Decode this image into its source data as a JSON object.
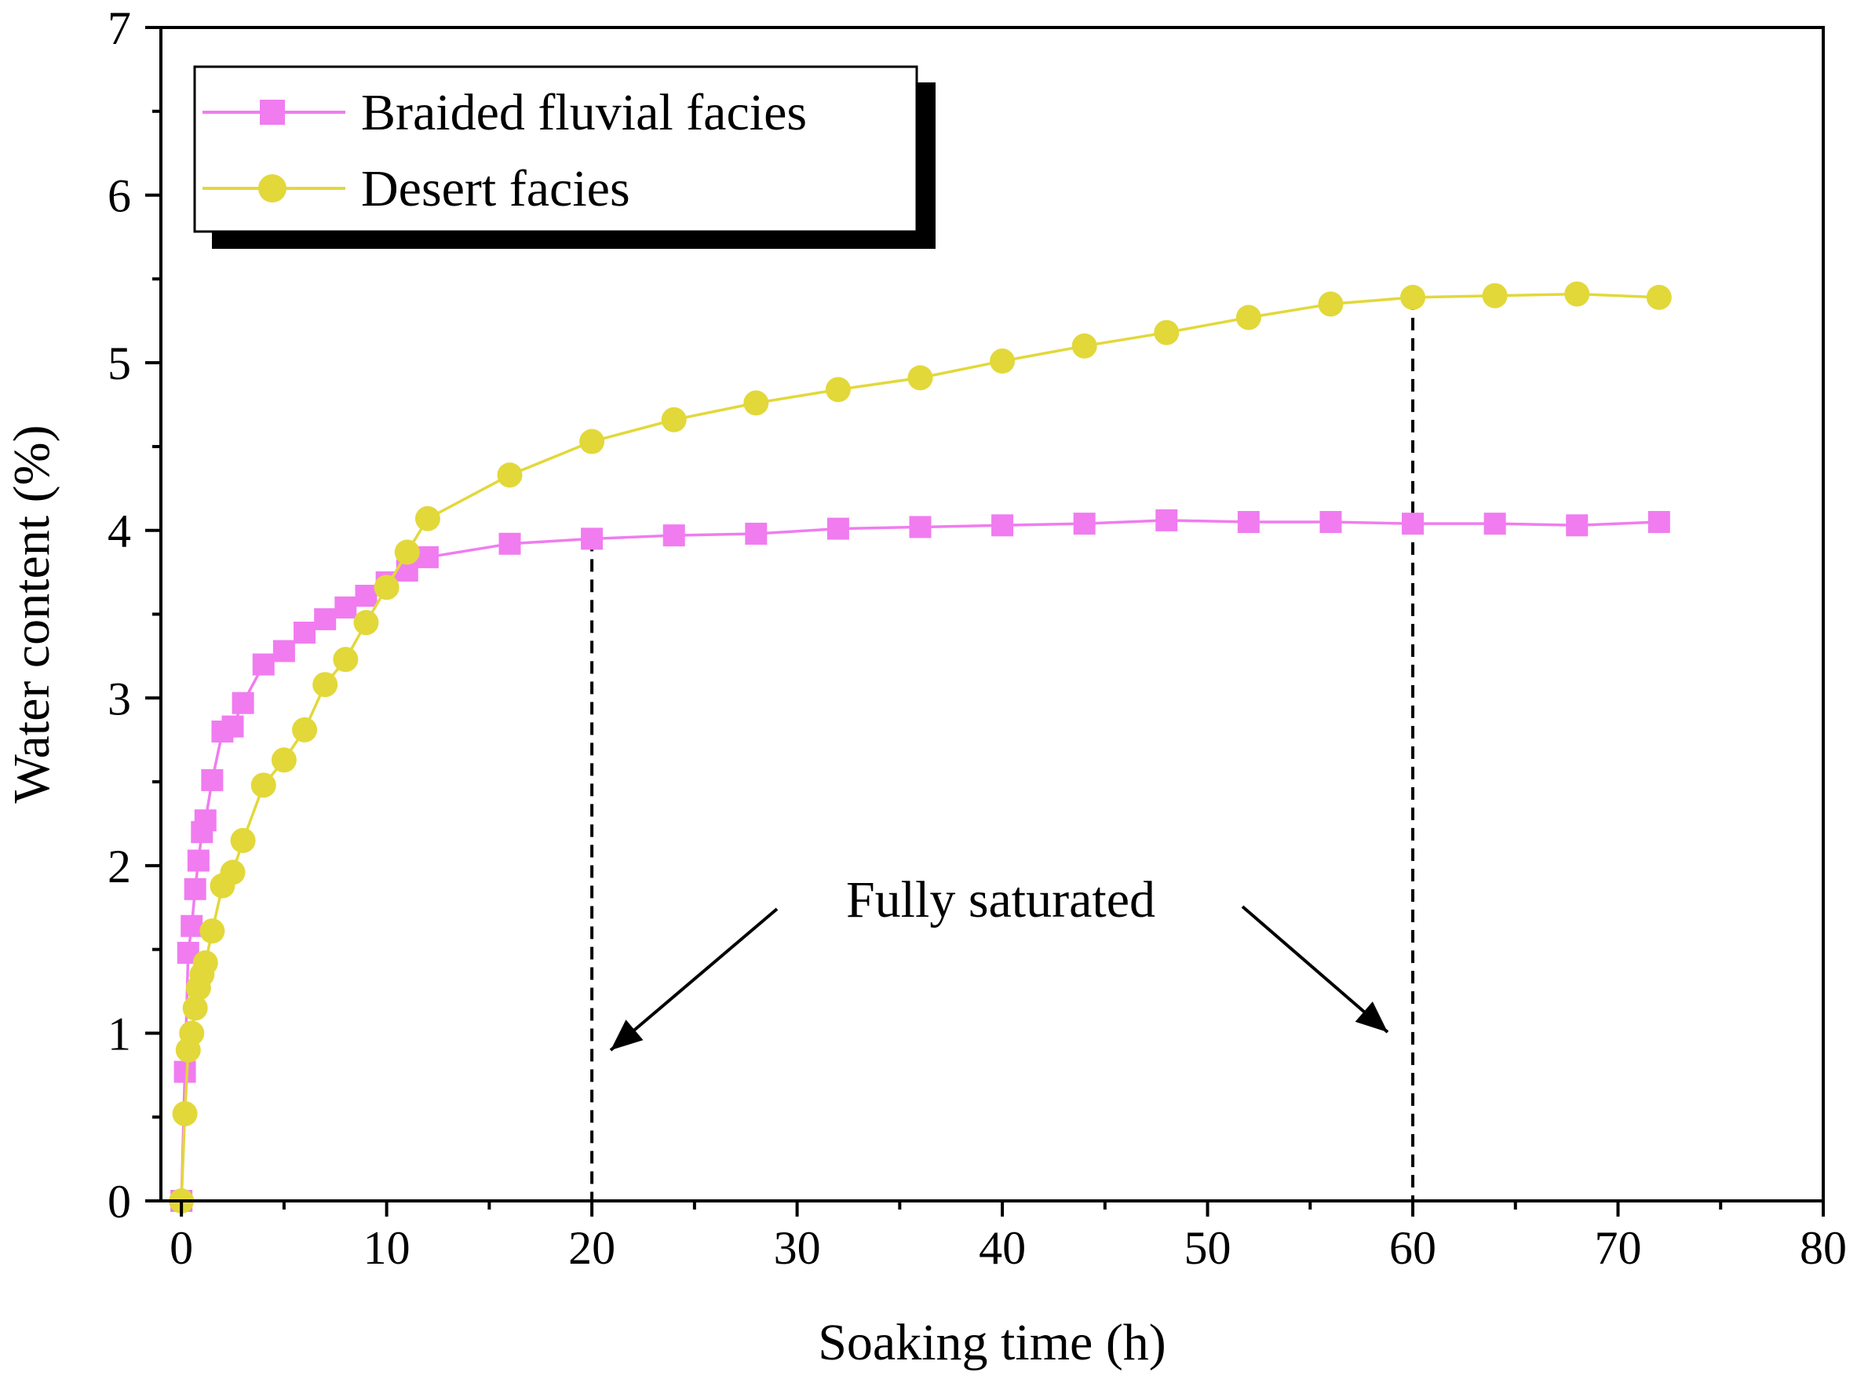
{
  "chart_data": {
    "type": "line",
    "title": "",
    "xlabel": "Soaking time (h)",
    "ylabel": "Water content (%)",
    "xlim": [
      -1,
      80
    ],
    "ylim": [
      0,
      7
    ],
    "x_ticks": [
      0,
      10,
      20,
      30,
      40,
      50,
      60,
      70,
      80
    ],
    "y_ticks": [
      0,
      1,
      2,
      3,
      4,
      5,
      6,
      7
    ],
    "grid": false,
    "legend_position": "top-left",
    "series": [
      {
        "name": "Braided fluvial facies",
        "color": "#f07cf0",
        "marker": "square",
        "x": [
          0,
          0.17,
          0.33,
          0.5,
          0.67,
          0.83,
          1.0,
          1.17,
          1.5,
          2.0,
          2.5,
          3.0,
          4.0,
          5.0,
          6.0,
          7.0,
          8.0,
          9.0,
          10.0,
          11.0,
          12.0,
          16.0,
          20.0,
          24.0,
          28.0,
          32.0,
          36.0,
          40.0,
          44.0,
          48.0,
          52.0,
          56.0,
          60.0,
          64.0,
          68.0,
          72.0
        ],
        "y": [
          0,
          0.77,
          1.48,
          1.64,
          1.86,
          2.03,
          2.2,
          2.27,
          2.51,
          2.8,
          2.83,
          2.97,
          3.2,
          3.28,
          3.39,
          3.47,
          3.54,
          3.61,
          3.69,
          3.76,
          3.84,
          3.92,
          3.95,
          3.97,
          3.98,
          4.01,
          4.02,
          4.03,
          4.04,
          4.06,
          4.05,
          4.05,
          4.04,
          4.04,
          4.03,
          4.05
        ]
      },
      {
        "name": "Desert facies",
        "color": "#e2d83a",
        "marker": "circle",
        "x": [
          0,
          0.17,
          0.33,
          0.5,
          0.67,
          0.83,
          1.0,
          1.17,
          1.5,
          2.0,
          2.5,
          3.0,
          4.0,
          5.0,
          6.0,
          7.0,
          8.0,
          9.0,
          10.0,
          11.0,
          12.0,
          16.0,
          20.0,
          24.0,
          28.0,
          32.0,
          36.0,
          40.0,
          44.0,
          48.0,
          52.0,
          56.0,
          60.0,
          64.0,
          68.0,
          72.0
        ],
        "y": [
          0,
          0.52,
          0.9,
          1.0,
          1.15,
          1.27,
          1.35,
          1.42,
          1.61,
          1.88,
          1.96,
          2.15,
          2.48,
          2.63,
          2.81,
          3.08,
          3.23,
          3.45,
          3.66,
          3.87,
          4.07,
          4.33,
          4.53,
          4.66,
          4.76,
          4.84,
          4.91,
          5.01,
          5.1,
          5.18,
          5.27,
          5.35,
          5.39,
          5.4,
          5.41,
          5.39
        ]
      }
    ],
    "annotations": [
      {
        "text": "Fully saturated"
      }
    ],
    "saturation_times": [
      20,
      60
    ]
  }
}
